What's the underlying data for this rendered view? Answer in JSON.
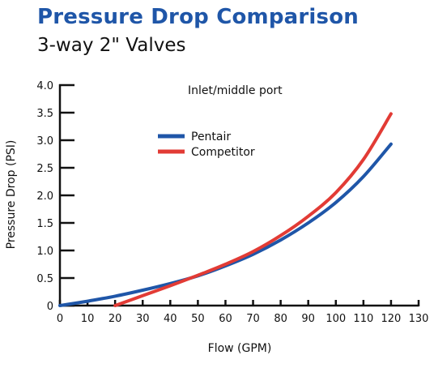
{
  "chart_data": {
    "type": "line",
    "title": "Pressure Drop Comparison",
    "subtitle": "3-way 2\" Valves",
    "annotation": "Inlet/middle port",
    "xlabel": "Flow (GPM)",
    "ylabel": "Pressure Drop (PSI)",
    "xlim": [
      0,
      130
    ],
    "ylim": [
      0,
      4.0
    ],
    "x_ticks": [
      "0",
      "10",
      "20",
      "30",
      "40",
      "50",
      "60",
      "70",
      "80",
      "90",
      "100",
      "110",
      "120",
      "130"
    ],
    "y_ticks": [
      "0",
      "0.5",
      "1.0",
      "1.5",
      "2.0",
      "2.5",
      "3.0",
      "3.5",
      "4.0"
    ],
    "grid": false,
    "legend_position": "top-center",
    "colors": {
      "title": "#1f56a8",
      "pentair": "#1f56a8",
      "competitor": "#e23b35"
    },
    "series": [
      {
        "name": "Pentair",
        "color": "#1f56a8",
        "x": [
          0,
          10,
          20,
          30,
          40,
          50,
          60,
          70,
          80,
          90,
          100,
          110,
          120
        ],
        "y": [
          0.0,
          0.08,
          0.17,
          0.28,
          0.4,
          0.54,
          0.72,
          0.93,
          1.19,
          1.5,
          1.87,
          2.34,
          2.93
        ]
      },
      {
        "name": "Competitor",
        "color": "#e23b35",
        "x": [
          20,
          30,
          40,
          50,
          60,
          70,
          80,
          90,
          100,
          110,
          120
        ],
        "y": [
          0.0,
          0.18,
          0.36,
          0.55,
          0.75,
          0.98,
          1.27,
          1.62,
          2.05,
          2.65,
          3.48
        ]
      }
    ]
  }
}
